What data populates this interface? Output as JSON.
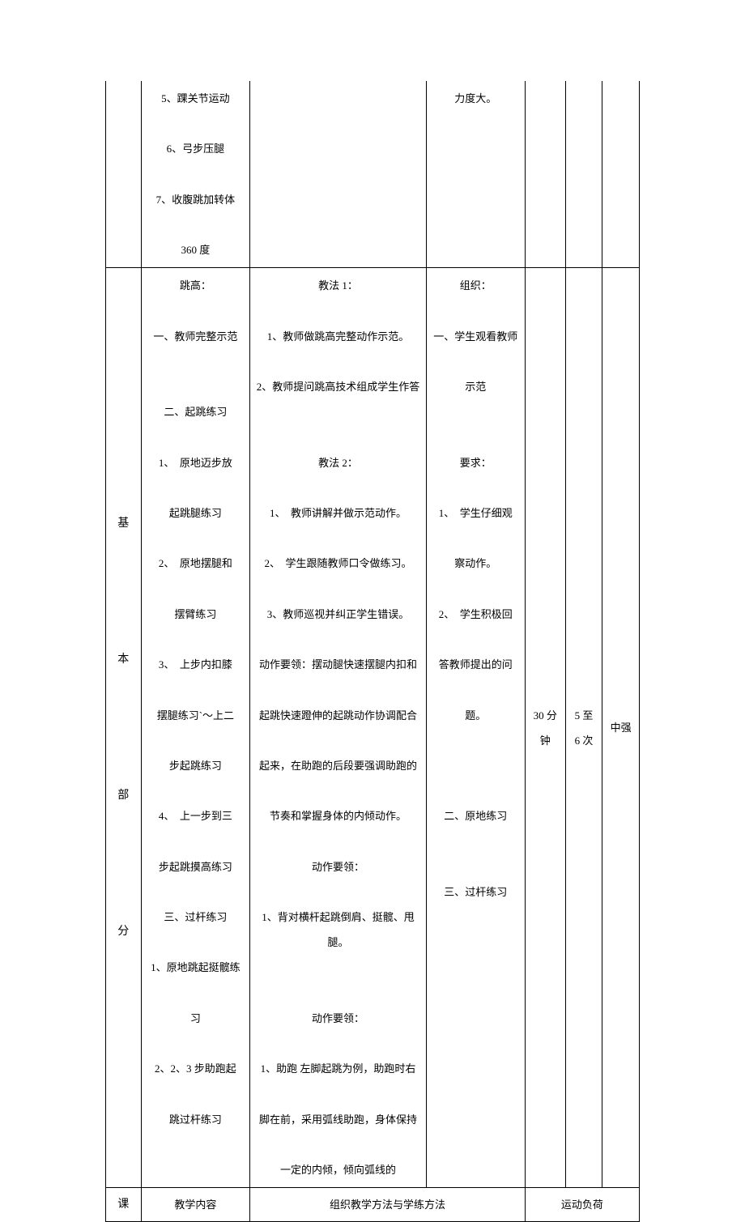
{
  "row1": {
    "content": "5、踝关节运动\n\n6、弓步压腿\n\n7、收腹跳加转体\n\n360 度",
    "org": "力度大。"
  },
  "row2": {
    "section": "基\n\n\n本\n\n\n部\n\n\n分",
    "content": "跳高：\n\n一、教师完整示范\n\n\n二、起跳练习\n\n1、　原地迈步放\n\n起跳腿练习\n\n2、　原地摆腿和\n\n摆臂练习\n\n3、　上步内扣膝\n\n摆腿练习`～上二\n\n步起跳练习\n\n4、　上一步到三\n\n步起跳摸高练习\n\n三、过杆练习\n\n1、原地跳起挺髋练\n\n习\n\n2、2、3 步助跑起\n\n跳过杆练习",
    "method": "教法 1：\n\n1、教师做跳高完整动作示范。\n\n2、教师提问跳高技术组成学生作答\n\n\n教法 2：\n\n1、　教师讲解并做示范动作。\n\n2、　学生跟随教师口令做练习。\n\n3、教师巡视并纠正学生错误。\n\n动作要领：摆动腿快速摆腿内扣和\n\n起跳快速蹬伸的起跳动作协调配合\n\n起来，在助跑的后段要强调助跑的\n\n节奏和掌握身体的内倾动作。\n\n动作要领：\n\n1、背对横杆起跳倒肩、挺髋、甩腿。\n\n\n动作要领：\n\n1、助跑 左脚起跳为例，助跑时右\n\n脚在前，采用弧线助跑，身体保持\n\n一定的内倾，倾向弧线的",
    "org": "组织：\n\n一、学生观看教师\n\n示范\n\n\n要求：\n\n1、　学生仔细观\n\n察动作。\n\n2、　学生积极回\n\n答教师提出的问\n\n题。\n\n\n\n二、原地练习\n\n\n三、过杆练习",
    "time": "30 分\n钟",
    "reps": "5 至\n6 次",
    "intensity": "中强"
  },
  "row3": {
    "section": "课",
    "content": "教学内容",
    "method_org": "组织教学方法与学练方法",
    "load": "运动负荷"
  },
  "style": {
    "font_size_body": 13,
    "font_size_section": 14,
    "text_color": "#000000",
    "border_color": "#000000",
    "background_color": "#ffffff",
    "line_height": 2.4
  }
}
